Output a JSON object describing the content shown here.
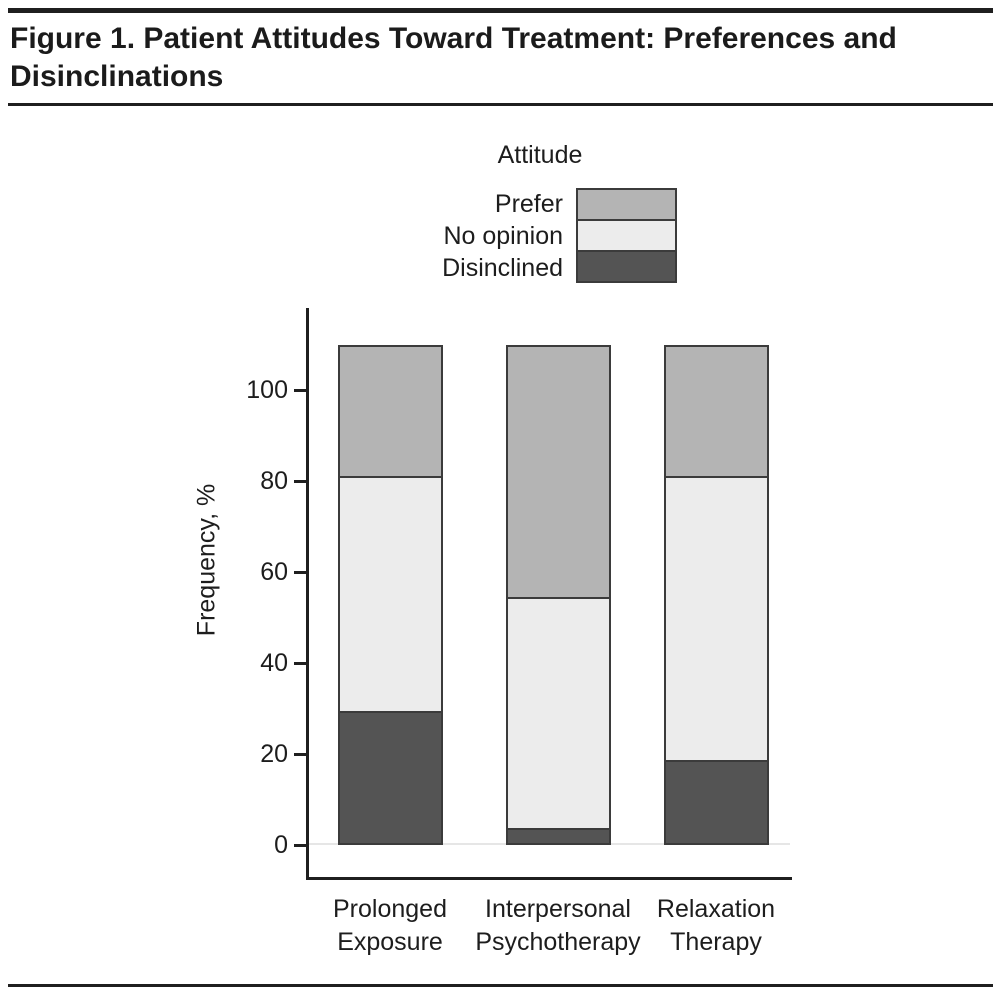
{
  "figure": {
    "title": "Figure 1. Patient Attitudes Toward Treatment: Preferences and Disinclinations"
  },
  "legend": {
    "title": "Attitude",
    "items": [
      {
        "label": "Prefer",
        "color": "#b4b4b4"
      },
      {
        "label": "No opinion",
        "color": "#ececec"
      },
      {
        "label": "Disinclined",
        "color": "#545454"
      }
    ]
  },
  "chart_data": {
    "type": "bar",
    "subtype": "stacked",
    "title": "Patient Attitudes Toward Treatment: Preferences and Disinclinations",
    "ylabel": "Frequency, %",
    "xlabel": "",
    "ylim": [
      0,
      110
    ],
    "yticks": [
      0,
      20,
      40,
      60,
      80,
      100
    ],
    "grid": false,
    "legend_position": "top-center",
    "categories": [
      "Prolonged Exposure",
      "Interpersonal Psychotherapy",
      "Relaxation Therapy"
    ],
    "category_label_lines": [
      [
        "Prolonged",
        "Exposure"
      ],
      [
        "Interpersonal",
        "Psychotherapy"
      ],
      [
        "Relaxation",
        "Therapy"
      ]
    ],
    "series": [
      {
        "name": "Disinclined",
        "color": "#545454",
        "values": [
          29,
          3,
          18
        ]
      },
      {
        "name": "No opinion",
        "color": "#ececec",
        "values": [
          52,
          51,
          63
        ]
      },
      {
        "name": "Prefer",
        "color": "#b4b4b4",
        "values": [
          29,
          56,
          29
        ]
      }
    ],
    "bar_totals": [
      110,
      110,
      110
    ],
    "colors": {
      "outline": "#3b3b3b",
      "axis": "#1f1f1f",
      "text": "#1d1d1d",
      "zero_gridline": "#e6e6e6"
    }
  }
}
